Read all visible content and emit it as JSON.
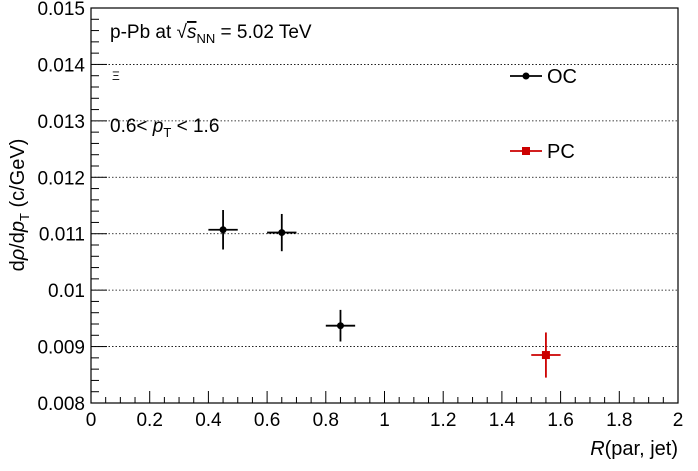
{
  "chart_data": {
    "type": "scatter",
    "xlabel": "R(par, jet)",
    "ylabel": "dρ/dp_T (c/GeV)",
    "xlim": [
      0,
      2
    ],
    "ylim": [
      0.008,
      0.015
    ],
    "x_ticks": [
      "0",
      "0.2",
      "0.4",
      "0.6",
      "0.8",
      "1",
      "1.2",
      "1.4",
      "1.6",
      "1.8",
      "2"
    ],
    "y_ticks": [
      "0.008",
      "0.009",
      "0.01",
      "0.011",
      "0.012",
      "0.013",
      "0.014",
      "0.015"
    ],
    "grid": "horizontal-dotted",
    "annotations": {
      "system": "p-Pb at √sNN = 5.02 TeV",
      "particle": "Ξ",
      "pt_range": "0.6< pT < 1.6"
    },
    "legend_position": "right",
    "series": [
      {
        "name": "OC",
        "color": "#000000",
        "marker": "circle",
        "points": [
          {
            "x": 0.45,
            "y": 0.01107,
            "xerr": 0.05,
            "yerr": 0.00035
          },
          {
            "x": 0.65,
            "y": 0.01102,
            "xerr": 0.05,
            "yerr": 0.00033
          },
          {
            "x": 0.85,
            "y": 0.00937,
            "xerr": 0.05,
            "yerr": 0.00028
          }
        ]
      },
      {
        "name": "PC",
        "color": "#cc0000",
        "marker": "square",
        "points": [
          {
            "x": 1.55,
            "y": 0.00885,
            "xerr": 0.05,
            "yerr": 0.0004
          }
        ]
      }
    ]
  }
}
